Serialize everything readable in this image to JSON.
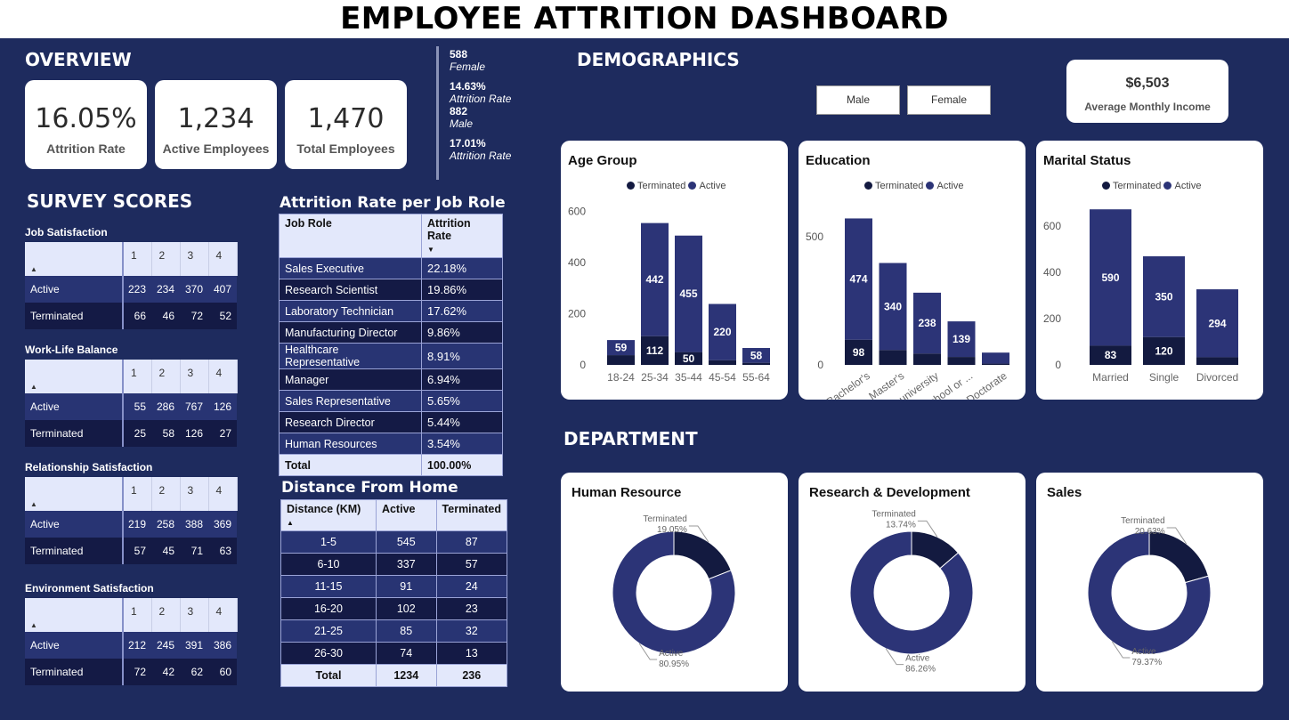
{
  "title": "EMPLOYEE ATTRITION DASHBOARD",
  "overview": {
    "heading": "OVERVIEW",
    "kpis": [
      {
        "value": "16.05%",
        "label": "Attrition Rate"
      },
      {
        "value": "1,234",
        "label": "Active Employees"
      },
      {
        "value": "1,470",
        "label": "Total Employees"
      }
    ],
    "side": [
      {
        "n": "588",
        "i": "Female"
      },
      {
        "n": "14.63%",
        "i": "Attrition Rate"
      },
      {
        "n": "882",
        "i": "Male"
      },
      {
        "n": "17.01%",
        "i": "Attrition Rate"
      }
    ]
  },
  "survey": {
    "heading": "SURVEY SCORES",
    "tables": [
      {
        "name": "Job Satisfaction",
        "cols": [
          "1",
          "2",
          "3",
          "4"
        ],
        "rows": [
          {
            "label": "Active",
            "vals": [
              "223",
              "234",
              "370",
              "407"
            ]
          },
          {
            "label": "Terminated",
            "vals": [
              "66",
              "46",
              "72",
              "52"
            ]
          }
        ]
      },
      {
        "name": "Work-Life Balance",
        "cols": [
          "1",
          "2",
          "3",
          "4"
        ],
        "rows": [
          {
            "label": "Active",
            "vals": [
              "55",
              "286",
              "767",
              "126"
            ]
          },
          {
            "label": "Terminated",
            "vals": [
              "25",
              "58",
              "126",
              "27"
            ]
          }
        ]
      },
      {
        "name": "Relationship Satisfaction",
        "cols": [
          "1",
          "2",
          "3",
          "4"
        ],
        "rows": [
          {
            "label": "Active",
            "vals": [
              "219",
              "258",
              "388",
              "369"
            ]
          },
          {
            "label": "Terminated",
            "vals": [
              "57",
              "45",
              "71",
              "63"
            ]
          }
        ]
      },
      {
        "name": "Environment Satisfaction",
        "cols": [
          "1",
          "2",
          "3",
          "4"
        ],
        "rows": [
          {
            "label": "Active",
            "vals": [
              "212",
              "245",
              "391",
              "386"
            ]
          },
          {
            "label": "Terminated",
            "vals": [
              "72",
              "42",
              "62",
              "60"
            ]
          }
        ]
      }
    ]
  },
  "jobrole": {
    "heading": "Attrition Rate per Job Role",
    "col1": "Job Role",
    "col2": "Attrition Rate",
    "rows": [
      [
        "Sales Executive",
        "22.18%"
      ],
      [
        "Research Scientist",
        "19.86%"
      ],
      [
        "Laboratory Technician",
        "17.62%"
      ],
      [
        "Manufacturing Director",
        "9.86%"
      ],
      [
        "Healthcare Representative",
        "8.91%"
      ],
      [
        "Manager",
        "6.94%"
      ],
      [
        "Sales Representative",
        "5.65%"
      ],
      [
        "Research Director",
        "5.44%"
      ],
      [
        "Human Resources",
        "3.54%"
      ]
    ],
    "total": [
      "Total",
      "100.00%"
    ]
  },
  "distance": {
    "heading": "Distance From Home",
    "cols": [
      "Distance (KM)",
      "Active",
      "Terminated"
    ],
    "rows": [
      [
        "1-5",
        "545",
        "87"
      ],
      [
        "6-10",
        "337",
        "57"
      ],
      [
        "11-15",
        "91",
        "24"
      ],
      [
        "16-20",
        "102",
        "23"
      ],
      [
        "21-25",
        "85",
        "32"
      ],
      [
        "26-30",
        "74",
        "13"
      ]
    ],
    "total": [
      "Total",
      "1234",
      "236"
    ]
  },
  "demographics": {
    "heading": "DEMOGRAPHICS",
    "buttons": [
      "Male",
      "Female"
    ],
    "income": {
      "value": "$6,503",
      "label": "Average Monthly Income"
    },
    "legend": {
      "terminated": "Terminated",
      "active": "Active"
    }
  },
  "department": {
    "heading": "DEPARTMENT"
  },
  "colors": {
    "active": "#2c3477",
    "terminated": "#131a40",
    "bg": "#1e2b5e"
  },
  "chart_data": [
    {
      "type": "bar",
      "title": "Age Group",
      "stacked": true,
      "categories": [
        "18-24",
        "25-34",
        "35-44",
        "45-54",
        "55-64"
      ],
      "series": [
        {
          "name": "Terminated",
          "values": [
            38,
            112,
            50,
            18,
            8
          ]
        },
        {
          "name": "Active",
          "values": [
            59,
            442,
            455,
            220,
            58
          ]
        }
      ],
      "ylim": [
        0,
        650
      ],
      "yticks": [
        0,
        200,
        400,
        600
      ],
      "labels": {
        "Terminated": [
          "",
          "112",
          "50",
          "",
          ""
        ],
        "Active": [
          "59",
          "442",
          "455",
          "220",
          "58"
        ]
      }
    },
    {
      "type": "bar",
      "title": "Education",
      "stacked": true,
      "categories": [
        "Bachelor's",
        "Master's",
        "Some university",
        "High school or ...",
        "Doctorate"
      ],
      "series": [
        {
          "name": "Terminated",
          "values": [
            98,
            58,
            44,
            31,
            5
          ]
        },
        {
          "name": "Active",
          "values": [
            474,
            340,
            238,
            139,
            43
          ]
        }
      ],
      "ylim": [
        0,
        650
      ],
      "yticks": [
        0,
        500
      ],
      "labels": {
        "Terminated": [
          "98",
          "",
          "",
          "",
          ""
        ],
        "Active": [
          "474",
          "340",
          "238",
          "139",
          ""
        ]
      }
    },
    {
      "type": "bar",
      "title": "Marital Status",
      "stacked": true,
      "categories": [
        "Married",
        "Single",
        "Divorced"
      ],
      "series": [
        {
          "name": "Terminated",
          "values": [
            83,
            120,
            33
          ]
        },
        {
          "name": "Active",
          "values": [
            590,
            350,
            294
          ]
        }
      ],
      "ylim": [
        0,
        720
      ],
      "yticks": [
        0,
        200,
        400,
        600
      ],
      "labels": {
        "Terminated": [
          "83",
          "120",
          ""
        ],
        "Active": [
          "590",
          "350",
          "294"
        ]
      }
    },
    {
      "type": "pie",
      "title": "Human Resource",
      "donut": true,
      "slices": [
        {
          "name": "Terminated",
          "pct": "19.05%",
          "value": 19.05
        },
        {
          "name": "Active",
          "pct": "80.95%",
          "value": 80.95
        }
      ]
    },
    {
      "type": "pie",
      "title": "Research & Development",
      "donut": true,
      "slices": [
        {
          "name": "Terminated",
          "pct": "13.74%",
          "value": 13.74
        },
        {
          "name": "Active",
          "pct": "86.26%",
          "value": 86.26
        }
      ]
    },
    {
      "type": "pie",
      "title": "Sales",
      "donut": true,
      "slices": [
        {
          "name": "Terminated",
          "pct": "20.63%",
          "value": 20.63
        },
        {
          "name": "Active",
          "pct": "79.37%",
          "value": 79.37
        }
      ]
    }
  ]
}
